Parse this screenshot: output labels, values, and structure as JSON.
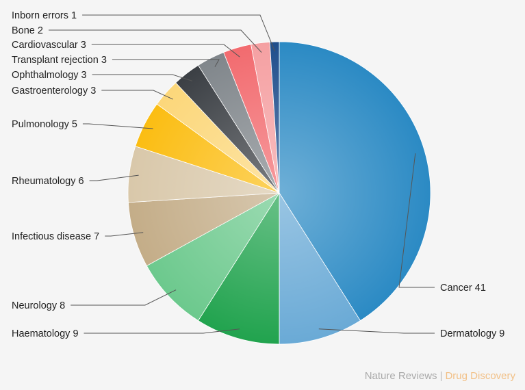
{
  "chart_data": {
    "type": "pie",
    "start_angle_deg": 0,
    "direction": "clockwise",
    "slices": [
      {
        "label": "Cancer",
        "value": 41,
        "color": "#2b8ac4"
      },
      {
        "label": "Dermatology",
        "value": 9,
        "color": "#6aaad6"
      },
      {
        "label": "Haematology",
        "value": 9,
        "color": "#21a34e"
      },
      {
        "label": "Neurology",
        "value": 8,
        "color": "#6cc98d"
      },
      {
        "label": "Infectious disease",
        "value": 7,
        "color": "#c4ad88"
      },
      {
        "label": "Rheumatology",
        "value": 6,
        "color": "#d9c8aa"
      },
      {
        "label": "Pulmonology",
        "value": 5,
        "color": "#fbbd12"
      },
      {
        "label": "Gastroenterology",
        "value": 3,
        "color": "#fcd77a"
      },
      {
        "label": "Ophthalmology",
        "value": 3,
        "color": "#3b3f44"
      },
      {
        "label": "Transplant rejection",
        "value": 3,
        "color": "#80868b"
      },
      {
        "label": "Cardiovascular",
        "value": 3,
        "color": "#f26b6f"
      },
      {
        "label": "Bone",
        "value": 2,
        "color": "#f5a0a2"
      },
      {
        "label": "Inborn errors",
        "value": 1,
        "color": "#1f4e8c"
      }
    ]
  },
  "source": {
    "publisher": "Nature Reviews",
    "separator": "|",
    "journal": "Drug Discovery",
    "publisher_color": "#a9a9a9",
    "journal_color": "#f2c086"
  }
}
